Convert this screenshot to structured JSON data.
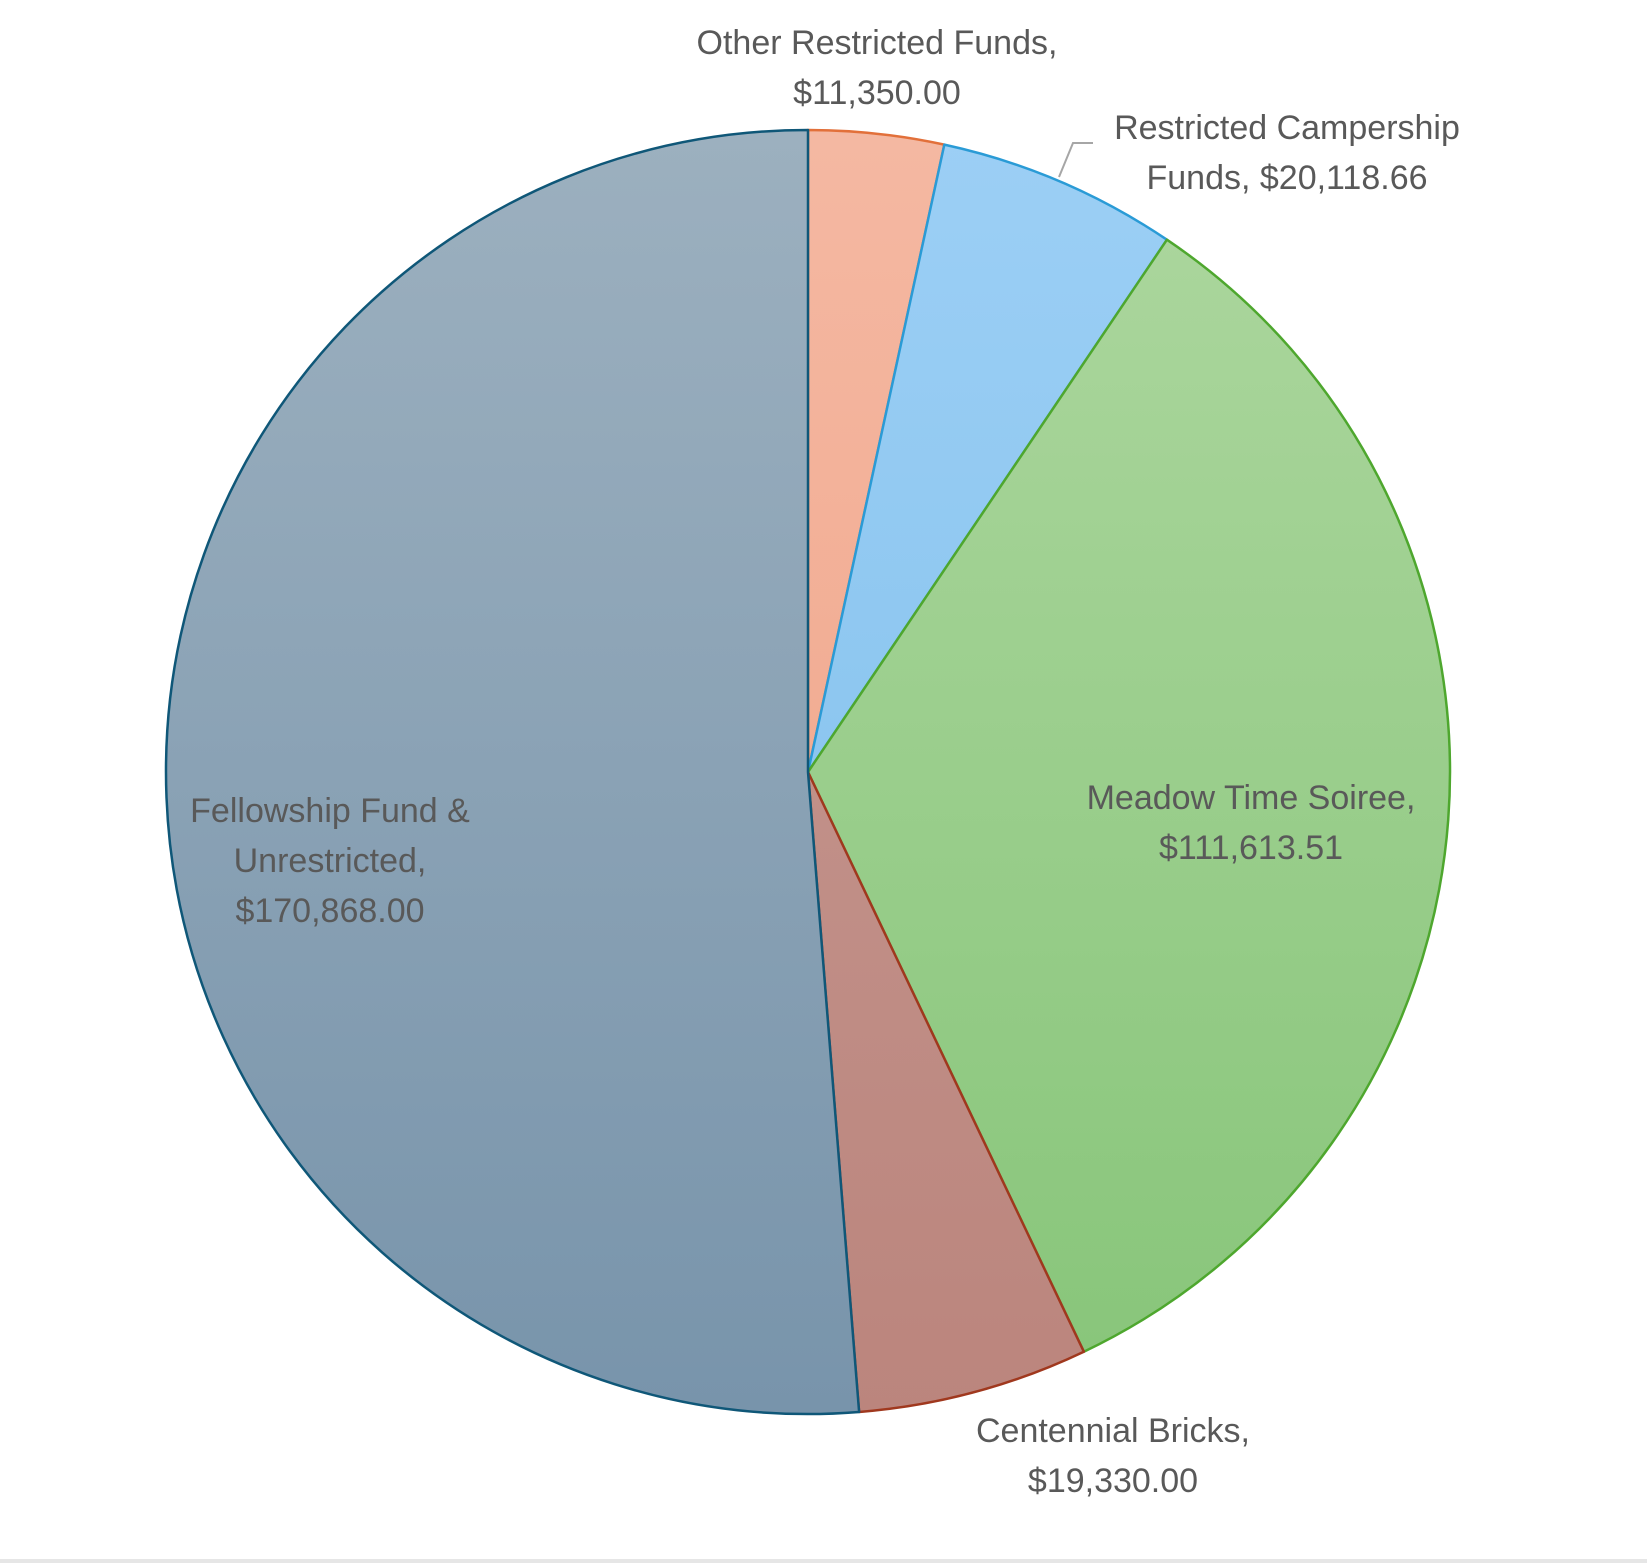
{
  "chart_data": {
    "type": "pie",
    "title": "",
    "start_angle_deg": 0,
    "direction": "clockwise",
    "slices": [
      {
        "name": "Other Restricted Funds",
        "value": 11350.0,
        "label_lines": [
          "Other Restricted Funds,",
          "$11,350.00"
        ],
        "fill_top": "#f4b8a2",
        "fill_bottom": "#f0a184",
        "stroke": "#e2703a"
      },
      {
        "name": "Restricted Campership Funds",
        "value": 20118.66,
        "label_lines": [
          "Restricted Campership",
          "Funds,  $20,118.66"
        ],
        "fill_top": "#9ccff5",
        "fill_bottom": "#7cbdea",
        "stroke": "#2a9bd6"
      },
      {
        "name": "Meadow Time Soiree",
        "value": 111613.51,
        "label_lines": [
          "Meadow Time Soiree,",
          "$111,613.51"
        ],
        "fill_top": "#add79f",
        "fill_bottom": "#87c579",
        "stroke": "#4ea72e"
      },
      {
        "name": "Centennial Bricks",
        "value": 19330.0,
        "label_lines": [
          "Centennial Bricks,",
          "$19,330.00"
        ],
        "fill_top": "#c89b94",
        "fill_bottom": "#bb857d",
        "stroke": "#a0381e"
      },
      {
        "name": "Fellowship Fund & Unrestricted",
        "value": 170868.0,
        "label_lines": [
          "Fellowship Fund &",
          "Unrestricted,",
          "$170,868.00"
        ],
        "fill_top": "#9cb0bf",
        "fill_bottom": "#7894ab",
        "stroke": "#0f5778"
      }
    ],
    "legend": "none"
  }
}
